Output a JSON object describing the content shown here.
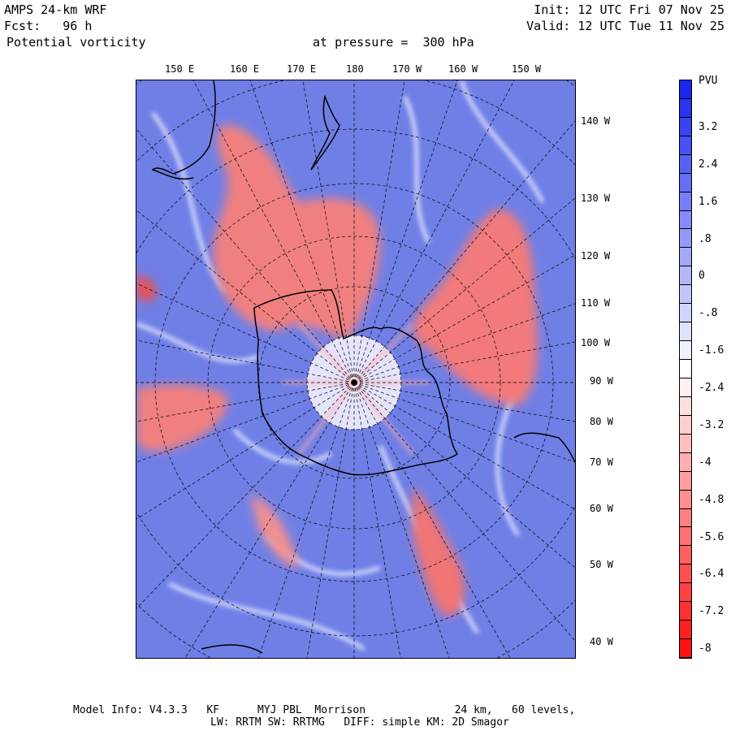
{
  "header": {
    "model": "AMPS 24-km WRF",
    "forecast": "Fcst:   96 h",
    "field": "Potential vorticity",
    "level": "at pressure =  300 hPa",
    "init": "Init: 12 UTC Fri 07 Nov 25",
    "valid": "Valid: 12 UTC Tue 11 Nov 25"
  },
  "lon_labels_top": [
    "150 E",
    "160 E",
    "170 E",
    "180",
    "170 W",
    "160 W",
    "150 W"
  ],
  "lon_labels_right": [
    "140 W",
    "130 W",
    "120 W",
    "110 W",
    "100 W",
    "90 W",
    "80 W",
    "70 W",
    "60 W",
    "50 W",
    "40 W"
  ],
  "colorbar": {
    "unit": "PVU",
    "tick_labels": [
      "3.2",
      "2.4",
      "1.6",
      ".8",
      "0",
      "-.8",
      "-1.6",
      "-2.4",
      "-3.2",
      "-4",
      "-4.8",
      "-5.6",
      "-6.4",
      "-7.2",
      "-8"
    ],
    "range": [
      -8,
      4
    ],
    "colors": {
      "positive": "#1a26f0",
      "neutral": "#ffffff",
      "negative": "#ff1010"
    }
  },
  "footer": {
    "line1": "Model Info: V4.3.3   KF      MYJ PBL  Morrison              24 km,   60 levels,",
    "line2": "LW: RRTM SW: RRTMG   DIFF: simple KM: 2D Smagor"
  },
  "colors": {
    "background_pv": "#6f7fe6",
    "high_pv": "#f07070",
    "gridline": "#000000",
    "coastline": "#000000"
  }
}
